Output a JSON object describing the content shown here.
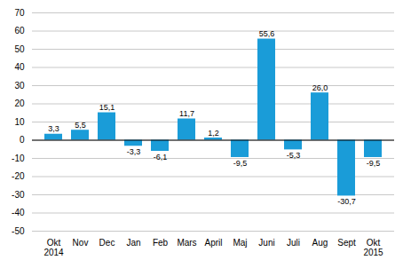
{
  "chart_data": {
    "type": "bar",
    "categories": [
      "Okt",
      "Nov",
      "Dec",
      "Jan",
      "Feb",
      "Mars",
      "April",
      "Maj",
      "Juni",
      "Juli",
      "Aug",
      "Sept",
      "Okt"
    ],
    "values": [
      3.3,
      5.5,
      15.1,
      -3.3,
      -6.1,
      11.7,
      1.2,
      -9.5,
      55.6,
      -5.3,
      26.0,
      -30.7,
      -9.5
    ],
    "value_labels": [
      "3,3",
      "5,5",
      "15,1",
      "-3,3",
      "-6,1",
      "11,7",
      "1,2",
      "-9,5",
      "55,6",
      "-5,3",
      "26,0",
      "-30,7",
      "-9,5"
    ],
    "data_labels": true,
    "color": "#1a9cd8",
    "ylim": [
      -50,
      70
    ],
    "yticks": [
      -50,
      -40,
      -30,
      -20,
      -10,
      0,
      10,
      20,
      30,
      40,
      50,
      60,
      70
    ],
    "grid": true,
    "annotations": [
      {
        "text": "2014",
        "x": 0
      },
      {
        "text": "2015",
        "x": 12
      }
    ]
  }
}
